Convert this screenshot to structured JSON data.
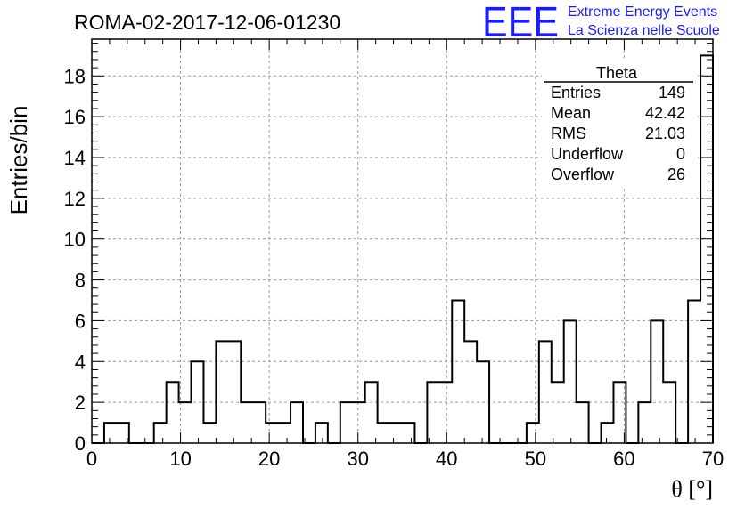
{
  "chart_data": {
    "type": "bar",
    "title": "ROMA-02-2017-12-06-01230",
    "xlabel": "θ [°]",
    "ylabel": "Entries/bin",
    "xlim": [
      0,
      70
    ],
    "ylim": [
      0,
      19.8
    ],
    "bin_width": 1.4,
    "x_ticks": [
      0,
      10,
      20,
      30,
      40,
      50,
      60,
      70
    ],
    "y_ticks": [
      0,
      2,
      4,
      6,
      8,
      10,
      12,
      14,
      16,
      18
    ],
    "grid": true,
    "values": [
      0,
      1,
      1,
      0,
      0,
      1,
      3,
      2,
      4,
      1,
      5,
      5,
      2,
      2,
      1,
      1,
      2,
      0,
      1,
      0,
      2,
      2,
      3,
      1,
      1,
      1,
      0,
      3,
      3,
      7,
      5,
      4,
      0,
      0,
      0,
      1,
      5,
      3,
      6,
      2,
      0,
      1,
      3,
      0,
      2,
      6,
      3,
      0,
      7,
      19
    ],
    "stats": {
      "name": "Theta",
      "rows": [
        {
          "label": "Entries",
          "value": "149"
        },
        {
          "label": "Mean",
          "value": "42.42"
        },
        {
          "label": "RMS",
          "value": "21.03"
        },
        {
          "label": "Underflow",
          "value": "0"
        },
        {
          "label": "Overflow",
          "value": "26"
        }
      ]
    }
  },
  "logo": {
    "mark": "EEE",
    "line1": "Extreme Energy Events",
    "line2": "La Scienza nelle Scuole",
    "color": "#1a1aff"
  }
}
